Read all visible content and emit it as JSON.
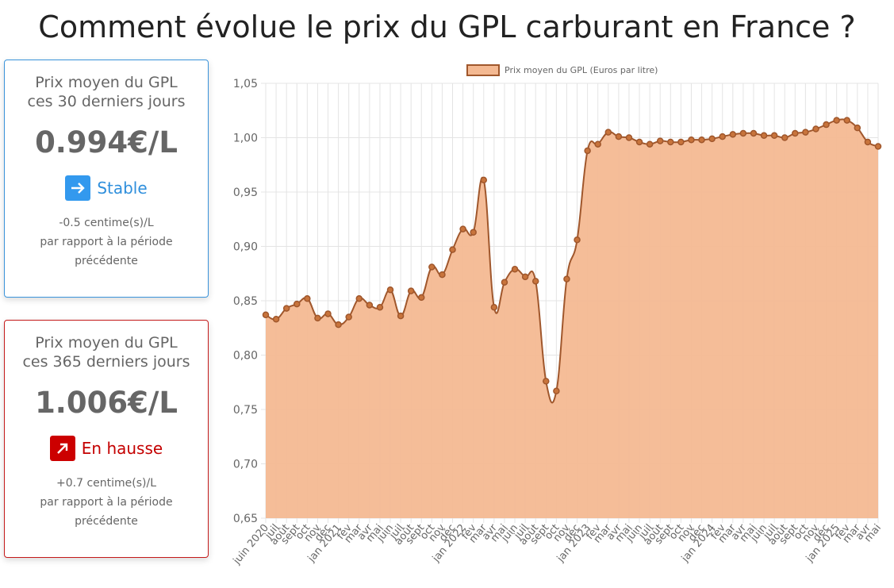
{
  "title": "Comment évolue le prix du GPL carburant en France ?",
  "cards": [
    {
      "heading": "Prix moyen du GPL ces 30 derniers jours",
      "price": "0.994€/L",
      "status": "Stable",
      "change": "-0.5 centime(s)/L",
      "note": "par rapport à la période précédente"
    },
    {
      "heading": "Prix moyen du GPL ces 365 derniers jours",
      "price": "1.006€/L",
      "status": "En hausse",
      "change": "+0.7 centime(s)/L",
      "note": "par rapport à la période précédente"
    }
  ],
  "chart_data": {
    "type": "line",
    "area": true,
    "categories": [
      "juin 2020",
      "juil",
      "août",
      "sept",
      "oct",
      "nov",
      "déc",
      "jan 2021",
      "fév",
      "mar",
      "avr",
      "mai",
      "juin",
      "juil",
      "août",
      "sept",
      "oct",
      "nov",
      "déc",
      "jan 2022",
      "fév",
      "mar",
      "avr",
      "mai",
      "juin",
      "juil",
      "août",
      "sept",
      "oct",
      "nov",
      "déc",
      "jan 2023",
      "fév",
      "mar",
      "avr",
      "mai",
      "juin",
      "juil",
      "août",
      "sept",
      "oct",
      "nov",
      "déc",
      "jan 2024",
      "fév",
      "mar",
      "avr",
      "mai",
      "juin",
      "juil",
      "août",
      "sept",
      "oct",
      "nov",
      "déc",
      "jan 2025",
      "fév",
      "mar",
      "avr",
      "mai"
    ],
    "series": [
      {
        "name": "Prix moyen du GPL (Euros par litre)",
        "color": "#a0572c",
        "fill": "#f4b992",
        "values": [
          0.837,
          0.833,
          0.843,
          0.847,
          0.852,
          0.834,
          0.838,
          0.828,
          0.835,
          0.852,
          0.846,
          0.844,
          0.86,
          0.836,
          0.859,
          0.853,
          0.881,
          0.874,
          0.897,
          0.916,
          0.913,
          0.961,
          0.844,
          0.867,
          0.879,
          0.872,
          0.868,
          0.776,
          0.767,
          0.87,
          0.906,
          0.988,
          0.994,
          1.005,
          1.001,
          1.0,
          0.996,
          0.994,
          0.997,
          0.996,
          0.996,
          0.998,
          0.998,
          0.999,
          1.001,
          1.003,
          1.004,
          1.004,
          1.002,
          1.002,
          1.0,
          1.004,
          1.005,
          1.008,
          1.012,
          1.016,
          1.016,
          1.009,
          0.996,
          0.992
        ]
      }
    ],
    "ylim": [
      0.65,
      1.05
    ],
    "yticks": [
      {
        "value": 0.65,
        "label": "0,65"
      },
      {
        "value": 0.7,
        "label": "0,70"
      },
      {
        "value": 0.75,
        "label": "0,75"
      },
      {
        "value": 0.8,
        "label": "0,80"
      },
      {
        "value": 0.85,
        "label": "0,85"
      },
      {
        "value": 0.9,
        "label": "0,90"
      },
      {
        "value": 0.95,
        "label": "0,95"
      },
      {
        "value": 1.0,
        "label": "1,00"
      },
      {
        "value": 1.05,
        "label": "1,05"
      }
    ],
    "grid": true,
    "legend": "top"
  }
}
